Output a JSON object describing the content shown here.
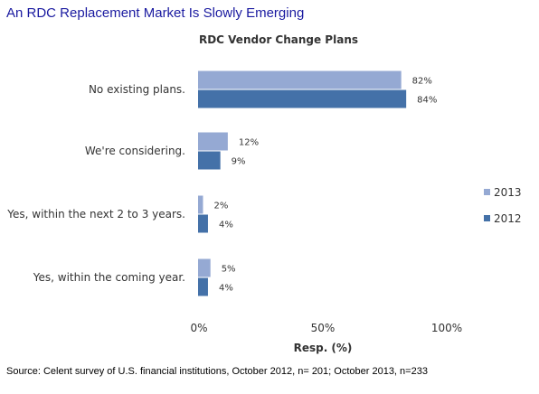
{
  "headline": "An RDC Replacement Market Is Slowly Emerging",
  "footnote": "Source: Celent survey of U.S. financial institutions, October 2012, n= 201; October 2013, n=233",
  "chart_data": {
    "type": "bar",
    "orientation": "horizontal",
    "title": "RDC Vendor Change Plans",
    "xlabel": "Resp. (%)",
    "ylabel": "",
    "xlim": [
      0,
      100
    ],
    "xticks": [
      0,
      50,
      100
    ],
    "xtick_labels": [
      "0%",
      "50%",
      "100%"
    ],
    "grid": false,
    "legend_position": "right",
    "categories": [
      "No existing plans.",
      "We're considering.",
      "Yes, within the next 2 to 3 years.",
      "Yes, within the coming year."
    ],
    "series": [
      {
        "name": "2013",
        "color": "#95a9d3",
        "values": [
          82,
          12,
          2,
          5
        ],
        "labels": [
          "82%",
          "12%",
          "2%",
          "5%"
        ]
      },
      {
        "name": "2012",
        "color": "#4471a8",
        "values": [
          84,
          9,
          4,
          4
        ],
        "labels": [
          "84%",
          "9%",
          "4%",
          "4%"
        ]
      }
    ]
  }
}
